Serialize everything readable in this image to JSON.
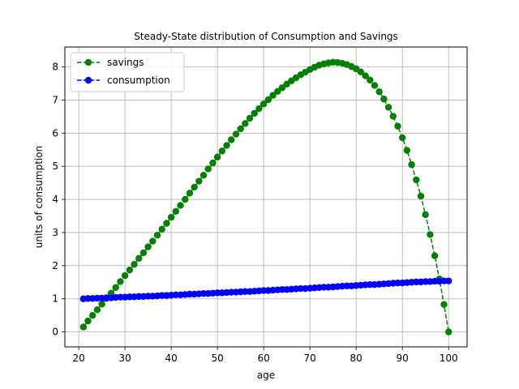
{
  "chart_data": {
    "type": "line",
    "title": "Steady-State distribution of Consumption and Savings",
    "xlabel": "age",
    "ylabel": "units of consumption",
    "xlim": [
      17,
      104
    ],
    "ylim": [
      -0.45,
      8.6
    ],
    "xticks": [
      20,
      30,
      40,
      50,
      60,
      70,
      80,
      90,
      100
    ],
    "yticks": [
      0,
      1,
      2,
      3,
      4,
      5,
      6,
      7,
      8
    ],
    "grid": true,
    "legend_position": "upper-left",
    "x": [
      21,
      22,
      23,
      24,
      25,
      26,
      27,
      28,
      29,
      30,
      31,
      32,
      33,
      34,
      35,
      36,
      37,
      38,
      39,
      40,
      41,
      42,
      43,
      44,
      45,
      46,
      47,
      48,
      49,
      50,
      51,
      52,
      53,
      54,
      55,
      56,
      57,
      58,
      59,
      60,
      61,
      62,
      63,
      64,
      65,
      66,
      67,
      68,
      69,
      70,
      71,
      72,
      73,
      74,
      75,
      76,
      77,
      78,
      79,
      80,
      81,
      82,
      83,
      84,
      85,
      86,
      87,
      88,
      89,
      90,
      91,
      92,
      93,
      94,
      95,
      96,
      97,
      98,
      99,
      100
    ],
    "series": [
      {
        "name": "savings",
        "color": "#008000",
        "line_style": "dashed",
        "marker": "circle",
        "values": [
          0.15,
          0.33,
          0.5,
          0.67,
          0.84,
          1.01,
          1.17,
          1.34,
          1.52,
          1.7,
          1.87,
          2.04,
          2.22,
          2.39,
          2.57,
          2.74,
          2.92,
          3.1,
          3.28,
          3.46,
          3.64,
          3.82,
          4.0,
          4.19,
          4.37,
          4.55,
          4.73,
          4.92,
          5.1,
          5.28,
          5.46,
          5.63,
          5.8,
          5.97,
          6.13,
          6.29,
          6.45,
          6.6,
          6.74,
          6.88,
          7.01,
          7.14,
          7.26,
          7.37,
          7.48,
          7.58,
          7.67,
          7.76,
          7.84,
          7.92,
          7.99,
          8.05,
          8.09,
          8.12,
          8.14,
          8.13,
          8.11,
          8.07,
          8.01,
          7.94,
          7.85,
          7.73,
          7.6,
          7.44,
          7.25,
          7.03,
          6.78,
          6.51,
          6.21,
          5.86,
          5.48,
          5.05,
          4.59,
          4.1,
          3.54,
          2.94,
          2.3,
          1.6,
          0.83,
          0.0
        ]
      },
      {
        "name": "consumption",
        "color": "#0000ff",
        "line_style": "dashed",
        "marker": "circle",
        "values": [
          1.0,
          1.01,
          1.01,
          1.02,
          1.02,
          1.03,
          1.03,
          1.04,
          1.05,
          1.05,
          1.06,
          1.06,
          1.07,
          1.07,
          1.08,
          1.08,
          1.09,
          1.1,
          1.1,
          1.11,
          1.12,
          1.12,
          1.13,
          1.14,
          1.14,
          1.15,
          1.16,
          1.16,
          1.17,
          1.18,
          1.18,
          1.19,
          1.2,
          1.2,
          1.21,
          1.22,
          1.22,
          1.23,
          1.24,
          1.25,
          1.25,
          1.26,
          1.27,
          1.28,
          1.28,
          1.29,
          1.3,
          1.31,
          1.31,
          1.32,
          1.33,
          1.34,
          1.35,
          1.35,
          1.36,
          1.37,
          1.38,
          1.39,
          1.39,
          1.4,
          1.41,
          1.42,
          1.43,
          1.43,
          1.44,
          1.45,
          1.46,
          1.47,
          1.48,
          1.48,
          1.49,
          1.5,
          1.51,
          1.51,
          1.52,
          1.52,
          1.53,
          1.53,
          1.54,
          1.54
        ]
      }
    ]
  }
}
